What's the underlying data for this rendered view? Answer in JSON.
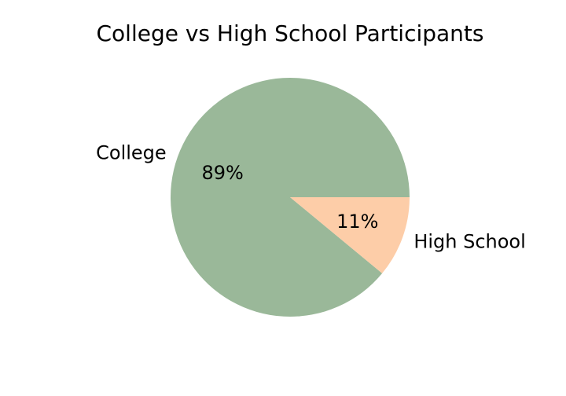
{
  "chart_data": {
    "type": "pie",
    "title": "College vs High School Participants",
    "slices": [
      {
        "label": "College",
        "value": 89,
        "pct_label": "89%",
        "color": "#9ab899"
      },
      {
        "label": "High School",
        "value": 11,
        "pct_label": "11%",
        "color": "#fdcda8"
      }
    ],
    "start_angle": "3 o'clock",
    "direction": "counterclockwise",
    "legend": "none"
  }
}
